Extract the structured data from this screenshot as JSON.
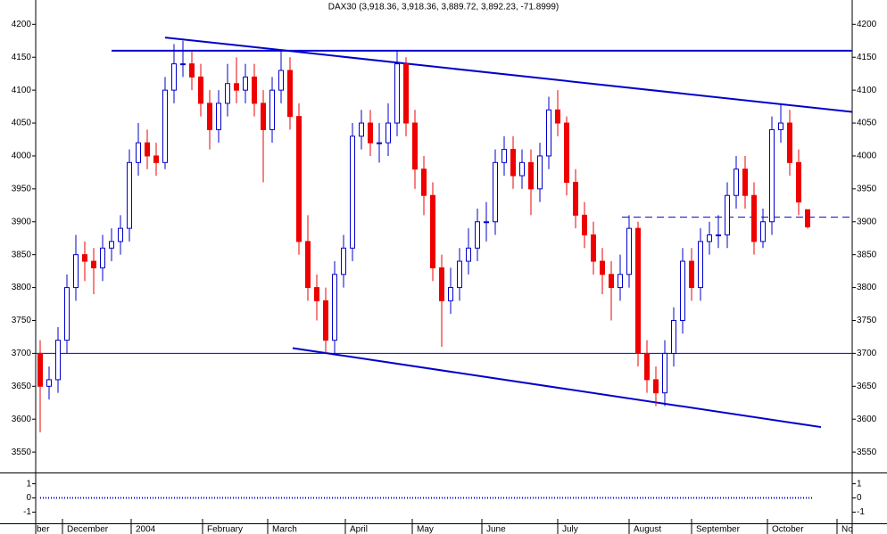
{
  "chart_data": {
    "type": "candlestick",
    "title": "DAX30 (3,918.36, 3,918.36, 3,889.72, 3,892.23, -71.8999)",
    "up_color": "#0000cc",
    "down_color": "#ee0000",
    "line_color": "#0000cc",
    "xlim": [
      0,
      91.5
    ],
    "xticks": [
      {
        "value": 0,
        "label": "ber"
      },
      {
        "value": 3,
        "label": "December"
      },
      {
        "value": 10.7,
        "label": "2004"
      },
      {
        "value": 18.7,
        "label": "February"
      },
      {
        "value": 26,
        "label": "March"
      },
      {
        "value": 34.7,
        "label": "April"
      },
      {
        "value": 42.2,
        "label": "May"
      },
      {
        "value": 50,
        "label": "June"
      },
      {
        "value": 58.5,
        "label": "July"
      },
      {
        "value": 66.5,
        "label": "August"
      },
      {
        "value": 73.5,
        "label": "September"
      },
      {
        "value": 82,
        "label": "October"
      },
      {
        "value": 89.8,
        "label": "No"
      }
    ],
    "ylim": [
      3519,
      4237
    ],
    "yticks": [
      3550,
      3600,
      3650,
      3700,
      3750,
      3800,
      3850,
      3900,
      3950,
      4000,
      4050,
      4100,
      4150,
      4200
    ],
    "open": [
      3700,
      3650,
      3660,
      3720,
      3800,
      3850,
      3840,
      3830,
      3860,
      3870,
      3890,
      3990,
      4020,
      4000,
      3990,
      4100,
      4140,
      4140,
      4120,
      4080,
      4040,
      4080,
      4110,
      4100,
      4120,
      4080,
      4040,
      4100,
      4130,
      4060,
      3870,
      3800,
      3780,
      3720,
      3820,
      3860,
      4030,
      4050,
      4020,
      4020,
      4050,
      4140,
      4050,
      3980,
      3940,
      3830,
      3780,
      3800,
      3840,
      3860,
      3900,
      3900,
      3990,
      4010,
      3970,
      3990,
      3950,
      4000,
      4070,
      4050,
      3960,
      3910,
      3880,
      3840,
      3820,
      3800,
      3820,
      3890,
      3700,
      3660,
      3640,
      3700,
      3750,
      3840,
      3800,
      3870,
      3880,
      3880,
      3940,
      3980,
      3940,
      3870,
      3900,
      4040,
      4050,
      3990,
      3918.36
    ],
    "high": [
      3720,
      3680,
      3740,
      3820,
      3880,
      3870,
      3860,
      3880,
      3890,
      3910,
      4010,
      4050,
      4040,
      4020,
      4120,
      4170,
      4175,
      4160,
      4140,
      4100,
      4100,
      4140,
      4150,
      4140,
      4140,
      4100,
      4120,
      4160,
      4150,
      4080,
      3910,
      3820,
      3800,
      3840,
      3880,
      4050,
      4070,
      4070,
      4050,
      4080,
      4160,
      4150,
      4070,
      4000,
      3960,
      3850,
      3830,
      3860,
      3890,
      3920,
      3930,
      4010,
      4030,
      4030,
      4010,
      4010,
      4020,
      4090,
      4100,
      4060,
      3980,
      3930,
      3900,
      3860,
      3840,
      3850,
      3910,
      3900,
      3720,
      3680,
      3720,
      3770,
      3860,
      3860,
      3890,
      3900,
      3910,
      3960,
      4000,
      4000,
      3960,
      3920,
      4060,
      4080,
      4070,
      4010,
      3918.36
    ],
    "low": [
      3580,
      3630,
      3640,
      3700,
      3780,
      3810,
      3790,
      3810,
      3840,
      3850,
      3870,
      3970,
      3980,
      3970,
      3980,
      4080,
      4120,
      4100,
      4060,
      4010,
      4020,
      4060,
      4080,
      4080,
      4060,
      3960,
      4020,
      4080,
      4040,
      3850,
      3780,
      3750,
      3700,
      3700,
      3800,
      3840,
      4010,
      4000,
      3990,
      4000,
      4030,
      4030,
      3950,
      3910,
      3810,
      3710,
      3760,
      3780,
      3820,
      3840,
      3870,
      3880,
      3970,
      3950,
      3950,
      3910,
      3930,
      3980,
      4030,
      3940,
      3890,
      3860,
      3820,
      3790,
      3750,
      3780,
      3800,
      3680,
      3640,
      3620,
      3620,
      3680,
      3730,
      3780,
      3780,
      3850,
      3860,
      3860,
      3920,
      3920,
      3850,
      3860,
      3880,
      4020,
      3970,
      3910,
      3889.72
    ],
    "close": [
      3650,
      3660,
      3720,
      3800,
      3850,
      3840,
      3830,
      3860,
      3870,
      3890,
      3990,
      4020,
      4000,
      3990,
      4100,
      4140,
      4140,
      4120,
      4080,
      4040,
      4080,
      4110,
      4100,
      4120,
      4080,
      4040,
      4100,
      4130,
      4060,
      3870,
      3800,
      3780,
      3720,
      3820,
      3860,
      4030,
      4050,
      4020,
      4020,
      4050,
      4140,
      4050,
      3980,
      3940,
      3830,
      3780,
      3800,
      3840,
      3860,
      3900,
      3900,
      3990,
      4010,
      3970,
      3990,
      3950,
      4000,
      4070,
      4050,
      3960,
      3910,
      3880,
      3840,
      3820,
      3800,
      3820,
      3890,
      3700,
      3660,
      3640,
      3700,
      3750,
      3840,
      3800,
      3870,
      3880,
      3880,
      3940,
      3980,
      3940,
      3870,
      3900,
      4040,
      4050,
      3990,
      3930,
      3892.23
    ],
    "lines": [
      {
        "x": [
          14.5,
          91.5
        ],
        "y": [
          4180,
          4067
        ],
        "width": 2
      },
      {
        "x": [
          8.5,
          91.5
        ],
        "y": [
          4160,
          4160
        ],
        "width": 2
      },
      {
        "x": [
          28.8,
          88
        ],
        "y": [
          3708,
          3588
        ],
        "width": 2
      },
      {
        "x": [
          0,
          91.5
        ],
        "y": [
          3700,
          3700
        ],
        "width": 1
      },
      {
        "x": [
          65.7,
          91.5
        ],
        "y": [
          3907,
          3907
        ],
        "width": 1,
        "dashed": true
      }
    ],
    "indicator": {
      "x": [
        0.5,
        87
      ],
      "values": [
        0,
        0
      ],
      "y2lim": [
        -1.85,
        1.73
      ],
      "y2ticks": [
        1,
        0,
        -1
      ]
    }
  }
}
